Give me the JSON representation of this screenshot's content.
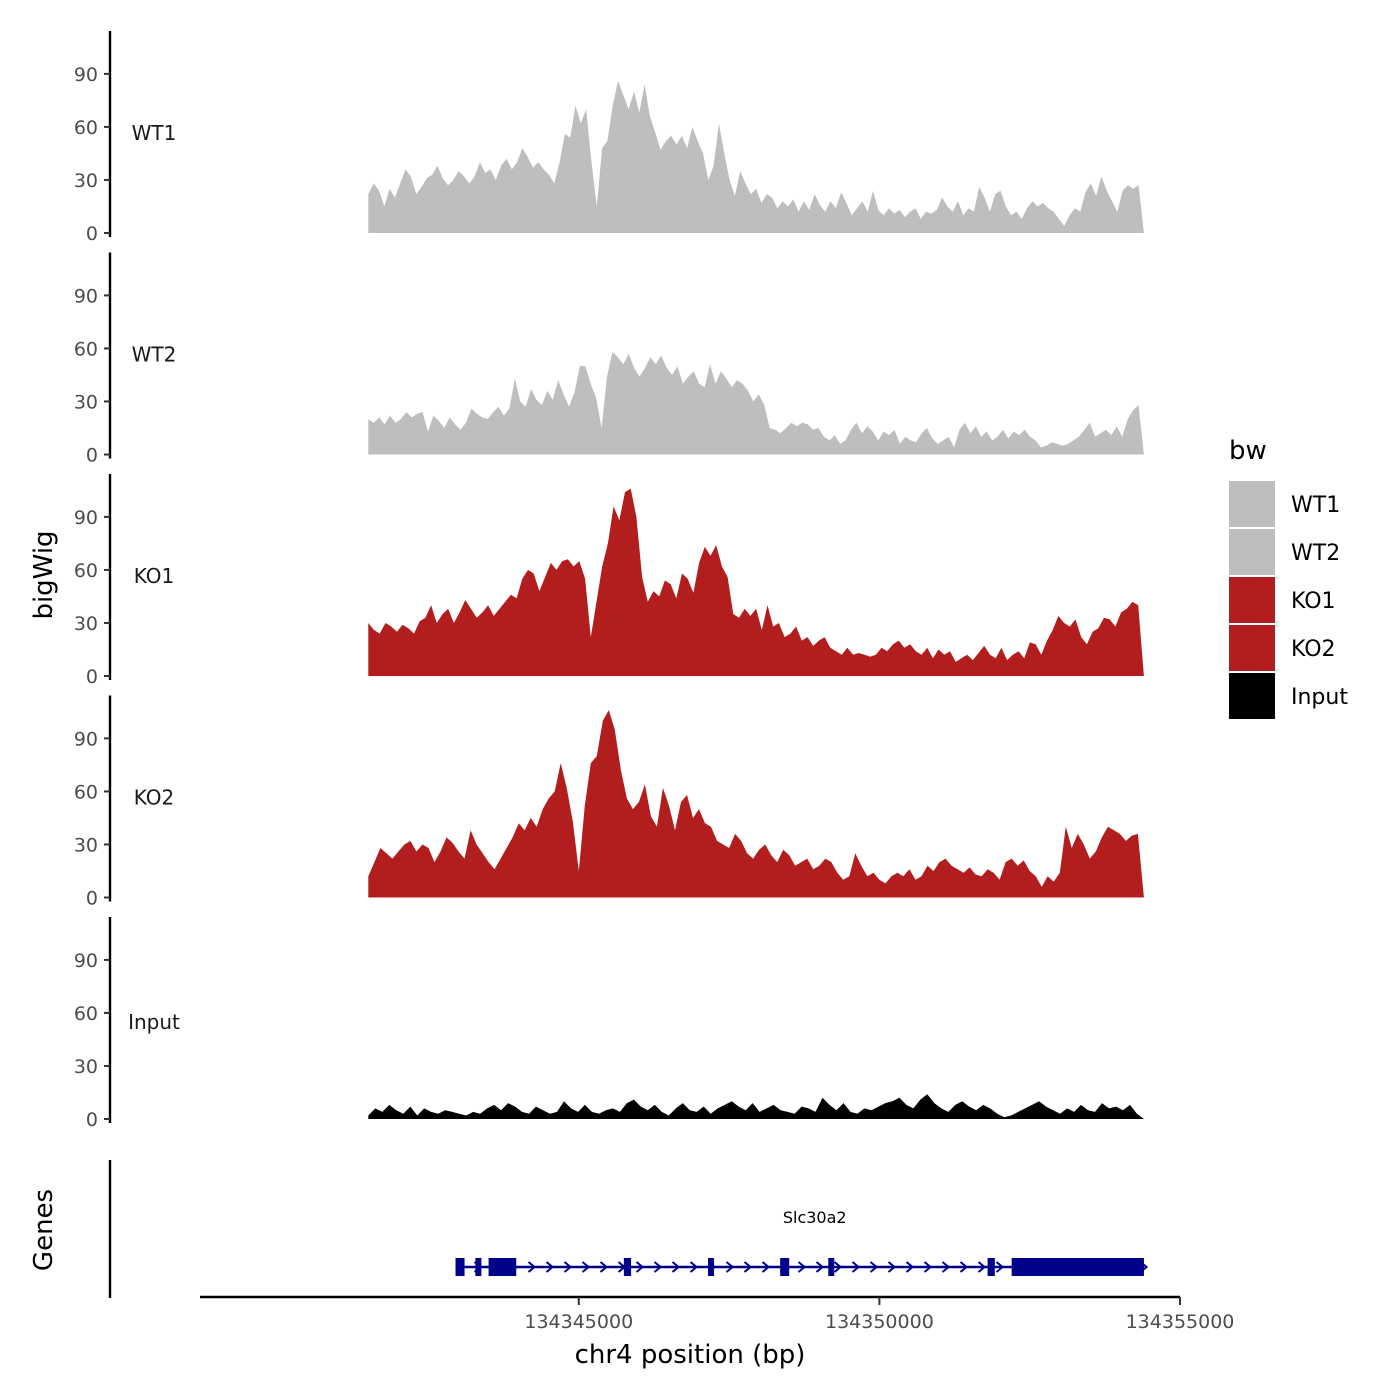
{
  "chart_data": {
    "type": "area",
    "ylabel": "bigWig",
    "xlabel": "chr4 position (bp)",
    "y_ticks": [
      0,
      30,
      60,
      90
    ],
    "ylim": [
      0,
      112
    ],
    "data_xlim": [
      134341500,
      134354400
    ],
    "x_axis": {
      "ticks": [
        134345000,
        134350000,
        134355000
      ],
      "tick_labels": [
        "134345000",
        "134350000",
        "134355000"
      ],
      "xlim": [
        134338700,
        134355000
      ]
    },
    "tracks": [
      {
        "name": "WT1",
        "color": "#bebebe",
        "values": [
          22,
          28,
          24,
          15,
          25,
          20,
          28,
          36,
          32,
          22,
          26,
          31,
          33,
          38,
          31,
          27,
          30,
          35,
          32,
          28,
          32,
          40,
          34,
          36,
          30,
          38,
          42,
          36,
          40,
          48,
          43,
          37,
          40,
          36,
          33,
          28,
          40,
          56,
          54,
          72,
          62,
          70,
          40,
          15,
          48,
          52,
          72,
          86,
          78,
          70,
          80,
          68,
          84,
          66,
          57,
          47,
          52,
          55,
          50,
          55,
          48,
          60,
          52,
          45,
          30,
          38,
          62,
          45,
          30,
          21,
          35,
          28,
          22,
          25,
          17,
          22,
          20,
          14,
          18,
          15,
          19,
          12,
          18,
          13,
          22,
          16,
          12,
          18,
          14,
          23,
          17,
          10,
          14,
          18,
          12,
          24,
          13,
          10,
          14,
          11,
          13,
          9,
          12,
          14,
          8,
          12,
          11,
          13,
          20,
          15,
          12,
          18,
          10,
          14,
          12,
          26,
          20,
          12,
          22,
          24,
          15,
          10,
          12,
          8,
          14,
          18,
          15,
          17,
          14,
          12,
          8,
          4,
          10,
          14,
          12,
          23,
          28,
          21,
          32,
          24,
          18,
          12,
          24,
          27,
          25,
          27,
          0
        ]
      },
      {
        "name": "WT2",
        "color": "#bebebe",
        "values": [
          20,
          18,
          21,
          17,
          22,
          18,
          20,
          24,
          21,
          23,
          24,
          13,
          22,
          19,
          15,
          21,
          17,
          14,
          18,
          26,
          23,
          21,
          20,
          24,
          27,
          22,
          26,
          43,
          30,
          27,
          37,
          31,
          28,
          36,
          31,
          42,
          34,
          27,
          35,
          50,
          50,
          40,
          32,
          15,
          44,
          58,
          55,
          51,
          57,
          49,
          44,
          49,
          55,
          51,
          56,
          49,
          45,
          50,
          40,
          44,
          47,
          40,
          38,
          51,
          40,
          47,
          43,
          38,
          42,
          40,
          36,
          30,
          34,
          28,
          15,
          14,
          12,
          15,
          18,
          16,
          18,
          17,
          14,
          15,
          10,
          8,
          11,
          6,
          8,
          14,
          18,
          12,
          16,
          13,
          8,
          13,
          11,
          14,
          6,
          10,
          8,
          7,
          12,
          15,
          9,
          6,
          8,
          10,
          4,
          14,
          18,
          12,
          16,
          10,
          13,
          8,
          10,
          14,
          9,
          13,
          11,
          14,
          10,
          8,
          4,
          5,
          7,
          6,
          5,
          6,
          8,
          10,
          14,
          18,
          10,
          12,
          14,
          11,
          16,
          10,
          20,
          25,
          28,
          0
        ]
      },
      {
        "name": "KO1",
        "color": "#b21e1e",
        "values": [
          30,
          26,
          24,
          30,
          28,
          25,
          29,
          27,
          24,
          31,
          33,
          40,
          30,
          35,
          38,
          30,
          36,
          43,
          38,
          33,
          36,
          40,
          34,
          38,
          42,
          46,
          44,
          55,
          60,
          58,
          48,
          56,
          64,
          60,
          65,
          66,
          62,
          65,
          55,
          22,
          42,
          62,
          75,
          96,
          88,
          104,
          106,
          90,
          56,
          42,
          48,
          45,
          54,
          52,
          44,
          58,
          55,
          47,
          64,
          73,
          68,
          74,
          62,
          56,
          35,
          33,
          38,
          34,
          38,
          26,
          40,
          28,
          30,
          22,
          24,
          28,
          20,
          22,
          17,
          20,
          22,
          16,
          14,
          12,
          16,
          12,
          13,
          12,
          11,
          12,
          16,
          14,
          18,
          20,
          16,
          18,
          14,
          12,
          16,
          10,
          15,
          12,
          14,
          8,
          10,
          12,
          9,
          13,
          17,
          12,
          10,
          16,
          9,
          12,
          14,
          10,
          19,
          18,
          12,
          20,
          26,
          34,
          30,
          28,
          32,
          22,
          18,
          25,
          27,
          33,
          32,
          28,
          36,
          38,
          42,
          40,
          0
        ]
      },
      {
        "name": "KO2",
        "color": "#b21e1e",
        "values": [
          12,
          20,
          28,
          25,
          22,
          26,
          30,
          32,
          26,
          30,
          28,
          20,
          26,
          34,
          31,
          26,
          22,
          38,
          30,
          25,
          20,
          16,
          22,
          28,
          34,
          42,
          38,
          45,
          40,
          50,
          56,
          60,
          76,
          62,
          43,
          15,
          52,
          76,
          80,
          100,
          106,
          95,
          72,
          56,
          50,
          54,
          64,
          46,
          40,
          62,
          52,
          38,
          54,
          58,
          45,
          50,
          42,
          40,
          32,
          30,
          28,
          36,
          32,
          25,
          22,
          27,
          30,
          24,
          20,
          27,
          24,
          18,
          20,
          22,
          16,
          18,
          22,
          20,
          14,
          10,
          12,
          25,
          18,
          12,
          14,
          10,
          8,
          12,
          14,
          12,
          16,
          10,
          12,
          18,
          15,
          20,
          22,
          18,
          16,
          14,
          17,
          13,
          12,
          16,
          14,
          10,
          20,
          22,
          18,
          21,
          15,
          12,
          6,
          12,
          9,
          14,
          40,
          28,
          36,
          30,
          22,
          26,
          34,
          40,
          38,
          36,
          32,
          35,
          36,
          0
        ]
      },
      {
        "name": "Input",
        "color": "#000000",
        "values": [
          2,
          6,
          4,
          8,
          5,
          3,
          7,
          2,
          6,
          4,
          3,
          5,
          4,
          3,
          2,
          4,
          3,
          6,
          8,
          5,
          9,
          7,
          4,
          3,
          7,
          5,
          3,
          4,
          10,
          6,
          4,
          8,
          4,
          3,
          5,
          6,
          4,
          9,
          11,
          7,
          5,
          8,
          4,
          2,
          6,
          9,
          5,
          4,
          7,
          3,
          6,
          8,
          10,
          7,
          5,
          9,
          4,
          6,
          8,
          5,
          4,
          3,
          7,
          6,
          4,
          12,
          8,
          5,
          9,
          4,
          3,
          6,
          5,
          7,
          9,
          10,
          12,
          8,
          6,
          11,
          14,
          9,
          6,
          4,
          8,
          10,
          7,
          5,
          8,
          6,
          3,
          1,
          2,
          4,
          6,
          8,
          10,
          7,
          5,
          3,
          6,
          4,
          8,
          5,
          4,
          9,
          6,
          7,
          5,
          8,
          3,
          0
        ]
      }
    ],
    "legend": {
      "title": "bw",
      "position": "right",
      "entries": [
        {
          "label": "WT1",
          "color": "#bebebe"
        },
        {
          "label": "WT2",
          "color": "#bebebe"
        },
        {
          "label": "KO1",
          "color": "#b21e1e"
        },
        {
          "label": "KO2",
          "color": "#b21e1e"
        },
        {
          "label": "Input",
          "color": "#000000"
        }
      ]
    },
    "genes": {
      "panel_label": "Genes",
      "color": "#00008b",
      "items": [
        {
          "name": "Slc30a2",
          "strand": "+",
          "start": 134342950,
          "end": 134354400,
          "exons": [
            [
              134342950,
              134343100
            ],
            [
              134343280,
              134343330
            ],
            [
              134343500,
              134343960
            ],
            [
              134345750,
              134345870
            ],
            [
              134347150,
              134347250
            ],
            [
              134348350,
              134348500
            ],
            [
              134349150,
              134349250
            ],
            [
              134351800,
              134351920
            ],
            [
              134352200,
              134354400
            ]
          ]
        }
      ]
    }
  }
}
